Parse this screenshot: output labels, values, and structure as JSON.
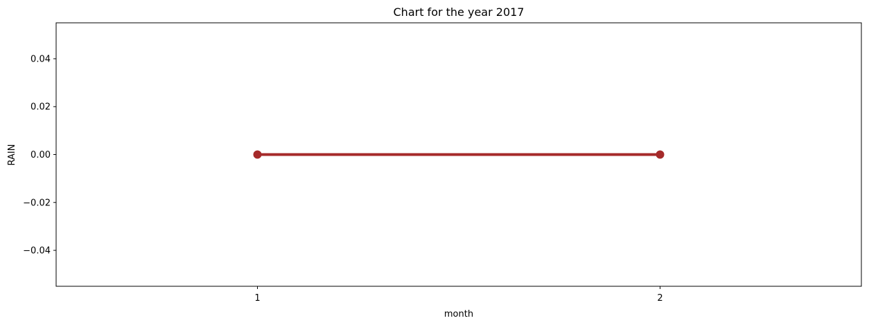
{
  "chart_data": {
    "type": "line",
    "title": "Chart for the year 2017",
    "xlabel": "month",
    "ylabel": "RAIN",
    "categories": [
      "1",
      "2"
    ],
    "series": [
      {
        "values": [
          0.0,
          0.0
        ],
        "color": "#a52a2a"
      }
    ],
    "ylim": [
      -0.055,
      0.055
    ],
    "yticks": [
      -0.04,
      -0.02,
      0.0,
      0.02,
      0.04
    ],
    "ytick_labels": [
      "−0.04",
      "−0.02",
      "0.00",
      "0.02",
      "0.04"
    ],
    "grid": false,
    "legend": "none"
  }
}
